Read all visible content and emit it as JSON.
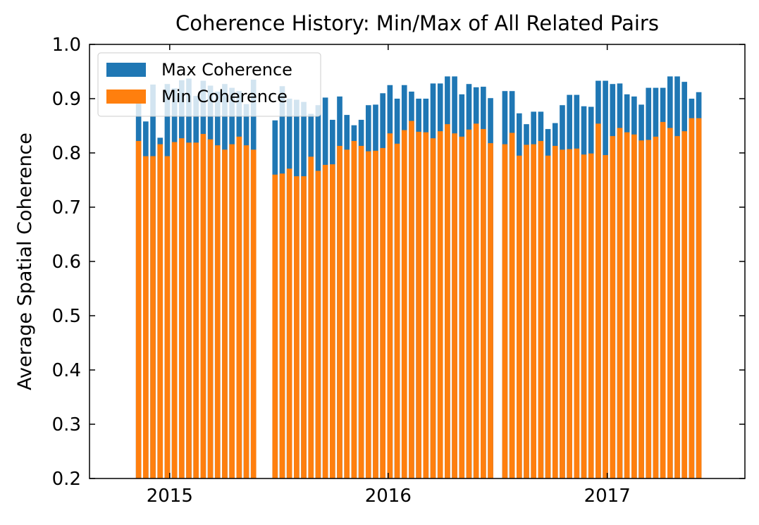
{
  "chart_data": {
    "type": "bar",
    "title": "Coherence History: Min/Max of All Related Pairs",
    "xlabel": "",
    "ylabel": "Average Spatial Coherence",
    "ylim": [
      0.2,
      1.0
    ],
    "xlim": [
      "2014-08-20",
      "2017-08-19"
    ],
    "x_ticks": [
      {
        "date": "2015-01-01",
        "label": "2015"
      },
      {
        "date": "2016-01-01",
        "label": "2016"
      },
      {
        "date": "2017-01-01",
        "label": "2017"
      }
    ],
    "y_ticks": [
      {
        "value": 0.2,
        "label": "0.2"
      },
      {
        "value": 0.3,
        "label": "0.3"
      },
      {
        "value": 0.4,
        "label": "0.4"
      },
      {
        "value": 0.5,
        "label": "0.5"
      },
      {
        "value": 0.6,
        "label": "0.6"
      },
      {
        "value": 0.7,
        "label": "0.7"
      },
      {
        "value": 0.8,
        "label": "0.8"
      },
      {
        "value": 0.9,
        "label": "0.9"
      },
      {
        "value": 1.0,
        "label": "1.0"
      }
    ],
    "grid": false,
    "legend": {
      "position": "top-left"
    },
    "x": [
      "2014-11-10",
      "2014-11-22",
      "2014-12-04",
      "2014-12-16",
      "2014-12-28",
      "2015-01-09",
      "2015-01-21",
      "2015-02-02",
      "2015-02-14",
      "2015-02-26",
      "2015-03-10",
      "2015-03-22",
      "2015-04-03",
      "2015-04-15",
      "2015-04-27",
      "2015-05-09",
      "2015-05-21",
      "2015-06-26",
      "2015-07-08",
      "2015-07-20",
      "2015-08-01",
      "2015-08-13",
      "2015-08-25",
      "2015-09-06",
      "2015-09-18",
      "2015-09-30",
      "2015-10-12",
      "2015-10-24",
      "2015-11-05",
      "2015-11-17",
      "2015-11-29",
      "2015-12-11",
      "2015-12-23",
      "2016-01-04",
      "2016-01-16",
      "2016-01-28",
      "2016-02-09",
      "2016-02-21",
      "2016-03-04",
      "2016-03-16",
      "2016-03-28",
      "2016-04-09",
      "2016-04-21",
      "2016-05-03",
      "2016-05-15",
      "2016-05-27",
      "2016-06-08",
      "2016-06-20",
      "2016-07-14",
      "2016-07-26",
      "2016-08-07",
      "2016-08-19",
      "2016-08-31",
      "2016-09-12",
      "2016-09-24",
      "2016-10-06",
      "2016-10-18",
      "2016-10-30",
      "2016-11-11",
      "2016-11-23",
      "2016-12-05",
      "2016-12-17",
      "2016-12-29",
      "2017-01-10",
      "2017-01-22",
      "2017-02-03",
      "2017-02-15",
      "2017-02-27",
      "2017-03-11",
      "2017-03-23",
      "2017-04-04",
      "2017-04-16",
      "2017-04-28",
      "2017-05-10",
      "2017-05-22",
      "2017-06-03"
    ],
    "series": [
      {
        "name": "Max Coherence",
        "color": "#1f77b4",
        "values": [
          0.909,
          0.858,
          0.926,
          0.828,
          0.927,
          0.919,
          0.934,
          0.937,
          0.905,
          0.933,
          0.924,
          0.913,
          0.927,
          0.92,
          0.914,
          0.89,
          0.935,
          0.86,
          0.923,
          0.9,
          0.898,
          0.894,
          0.872,
          0.888,
          0.902,
          0.861,
          0.904,
          0.87,
          0.851,
          0.861,
          0.888,
          0.889,
          0.91,
          0.925,
          0.9,
          0.925,
          0.913,
          0.9,
          0.9,
          0.928,
          0.928,
          0.941,
          0.941,
          0.908,
          0.927,
          0.921,
          0.922,
          0.901,
          0.914,
          0.914,
          0.873,
          0.853,
          0.876,
          0.876,
          0.844,
          0.855,
          0.888,
          0.907,
          0.907,
          0.886,
          0.885,
          0.933,
          0.933,
          0.927,
          0.928,
          0.908,
          0.904,
          0.889,
          0.92,
          0.92,
          0.92,
          0.941,
          0.941,
          0.931,
          0.9,
          0.912
        ]
      },
      {
        "name": "Min Coherence",
        "color": "#ff7f0e",
        "values": [
          0.822,
          0.794,
          0.794,
          0.816,
          0.794,
          0.82,
          0.827,
          0.819,
          0.819,
          0.835,
          0.825,
          0.814,
          0.806,
          0.816,
          0.83,
          0.814,
          0.806,
          0.76,
          0.762,
          0.771,
          0.757,
          0.757,
          0.793,
          0.767,
          0.778,
          0.779,
          0.813,
          0.806,
          0.822,
          0.813,
          0.803,
          0.804,
          0.809,
          0.836,
          0.817,
          0.842,
          0.859,
          0.839,
          0.838,
          0.827,
          0.84,
          0.853,
          0.836,
          0.83,
          0.843,
          0.854,
          0.844,
          0.818,
          0.816,
          0.837,
          0.795,
          0.815,
          0.816,
          0.822,
          0.795,
          0.813,
          0.806,
          0.807,
          0.808,
          0.797,
          0.799,
          0.854,
          0.796,
          0.831,
          0.846,
          0.838,
          0.834,
          0.823,
          0.824,
          0.83,
          0.857,
          0.846,
          0.831,
          0.84,
          0.864,
          0.864
        ]
      }
    ]
  }
}
